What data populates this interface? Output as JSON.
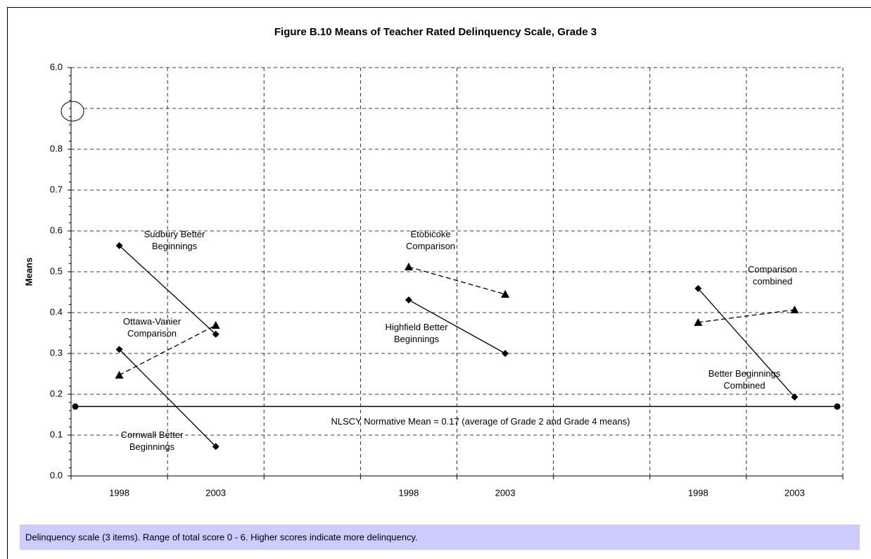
{
  "chart_data": {
    "type": "line",
    "title": "Figure B.10  Means of Teacher Rated Delinquency Scale, Grade 3",
    "y_label": "Means",
    "categories": [
      "1998",
      "2003",
      null,
      "1998",
      "2003",
      null,
      "1998",
      "2003"
    ],
    "ylim": [
      0,
      6.0
    ],
    "yticks": [
      {
        "value": 0,
        "label": "0.0"
      },
      0.1,
      0.2,
      0.3,
      0.4,
      0.5,
      0.6,
      0.7,
      0.8,
      {
        "value": 6,
        "label": "6.0"
      }
    ],
    "axis_break": true,
    "grid": true,
    "series": [
      {
        "name": [
          "Sudbury Better",
          "Beginnings"
        ],
        "color": "#000000",
        "marker": "diamond",
        "dashed": false,
        "values": [
          0.564,
          0.347,
          null,
          null,
          null,
          null,
          null,
          null
        ]
      },
      {
        "name": [
          "Ottawa-Vanier",
          "Comparison"
        ],
        "color": "#000000",
        "marker": "triangle",
        "dashed": true,
        "values": [
          0.247,
          0.369,
          null,
          null,
          null,
          null,
          null,
          null
        ]
      },
      {
        "name": [
          "Cornwall Better",
          "Beginnings"
        ],
        "color": "#000000",
        "marker": "diamond",
        "dashed": false,
        "values": [
          0.31,
          0.072,
          null,
          null,
          null,
          null,
          null,
          null
        ]
      },
      {
        "name": [
          "Etobicoke",
          "Comparison"
        ],
        "color": "#000000",
        "marker": "triangle",
        "dashed": true,
        "values": [
          null,
          null,
          null,
          0.512,
          0.445,
          null,
          null,
          null
        ]
      },
      {
        "name": [
          "Highfield Better",
          "Beginnings"
        ],
        "color": "#000000",
        "marker": "diamond",
        "dashed": false,
        "values": [
          null,
          null,
          null,
          0.431,
          0.3,
          null,
          null,
          null
        ]
      },
      {
        "name": [
          "Comparison",
          "combined"
        ],
        "color": "#000000",
        "marker": "triangle",
        "dashed": true,
        "values": [
          null,
          null,
          null,
          null,
          null,
          null,
          0.376,
          0.407
        ]
      },
      {
        "name": [
          "Better Beginnings",
          "Combined"
        ],
        "color": "#000000",
        "marker": "diamond",
        "dashed": false,
        "values": [
          null,
          null,
          null,
          null,
          null,
          null,
          0.459,
          0.193
        ]
      }
    ],
    "reference_line": {
      "value": 0.17,
      "label": "NLSCY Normative Mean = 0.17 (average of Grade 2 and Grade 4 means)"
    },
    "note": "Delinquency scale (3 items). Range of total score 0 - 6. Higher scores indicate more delinquency."
  }
}
